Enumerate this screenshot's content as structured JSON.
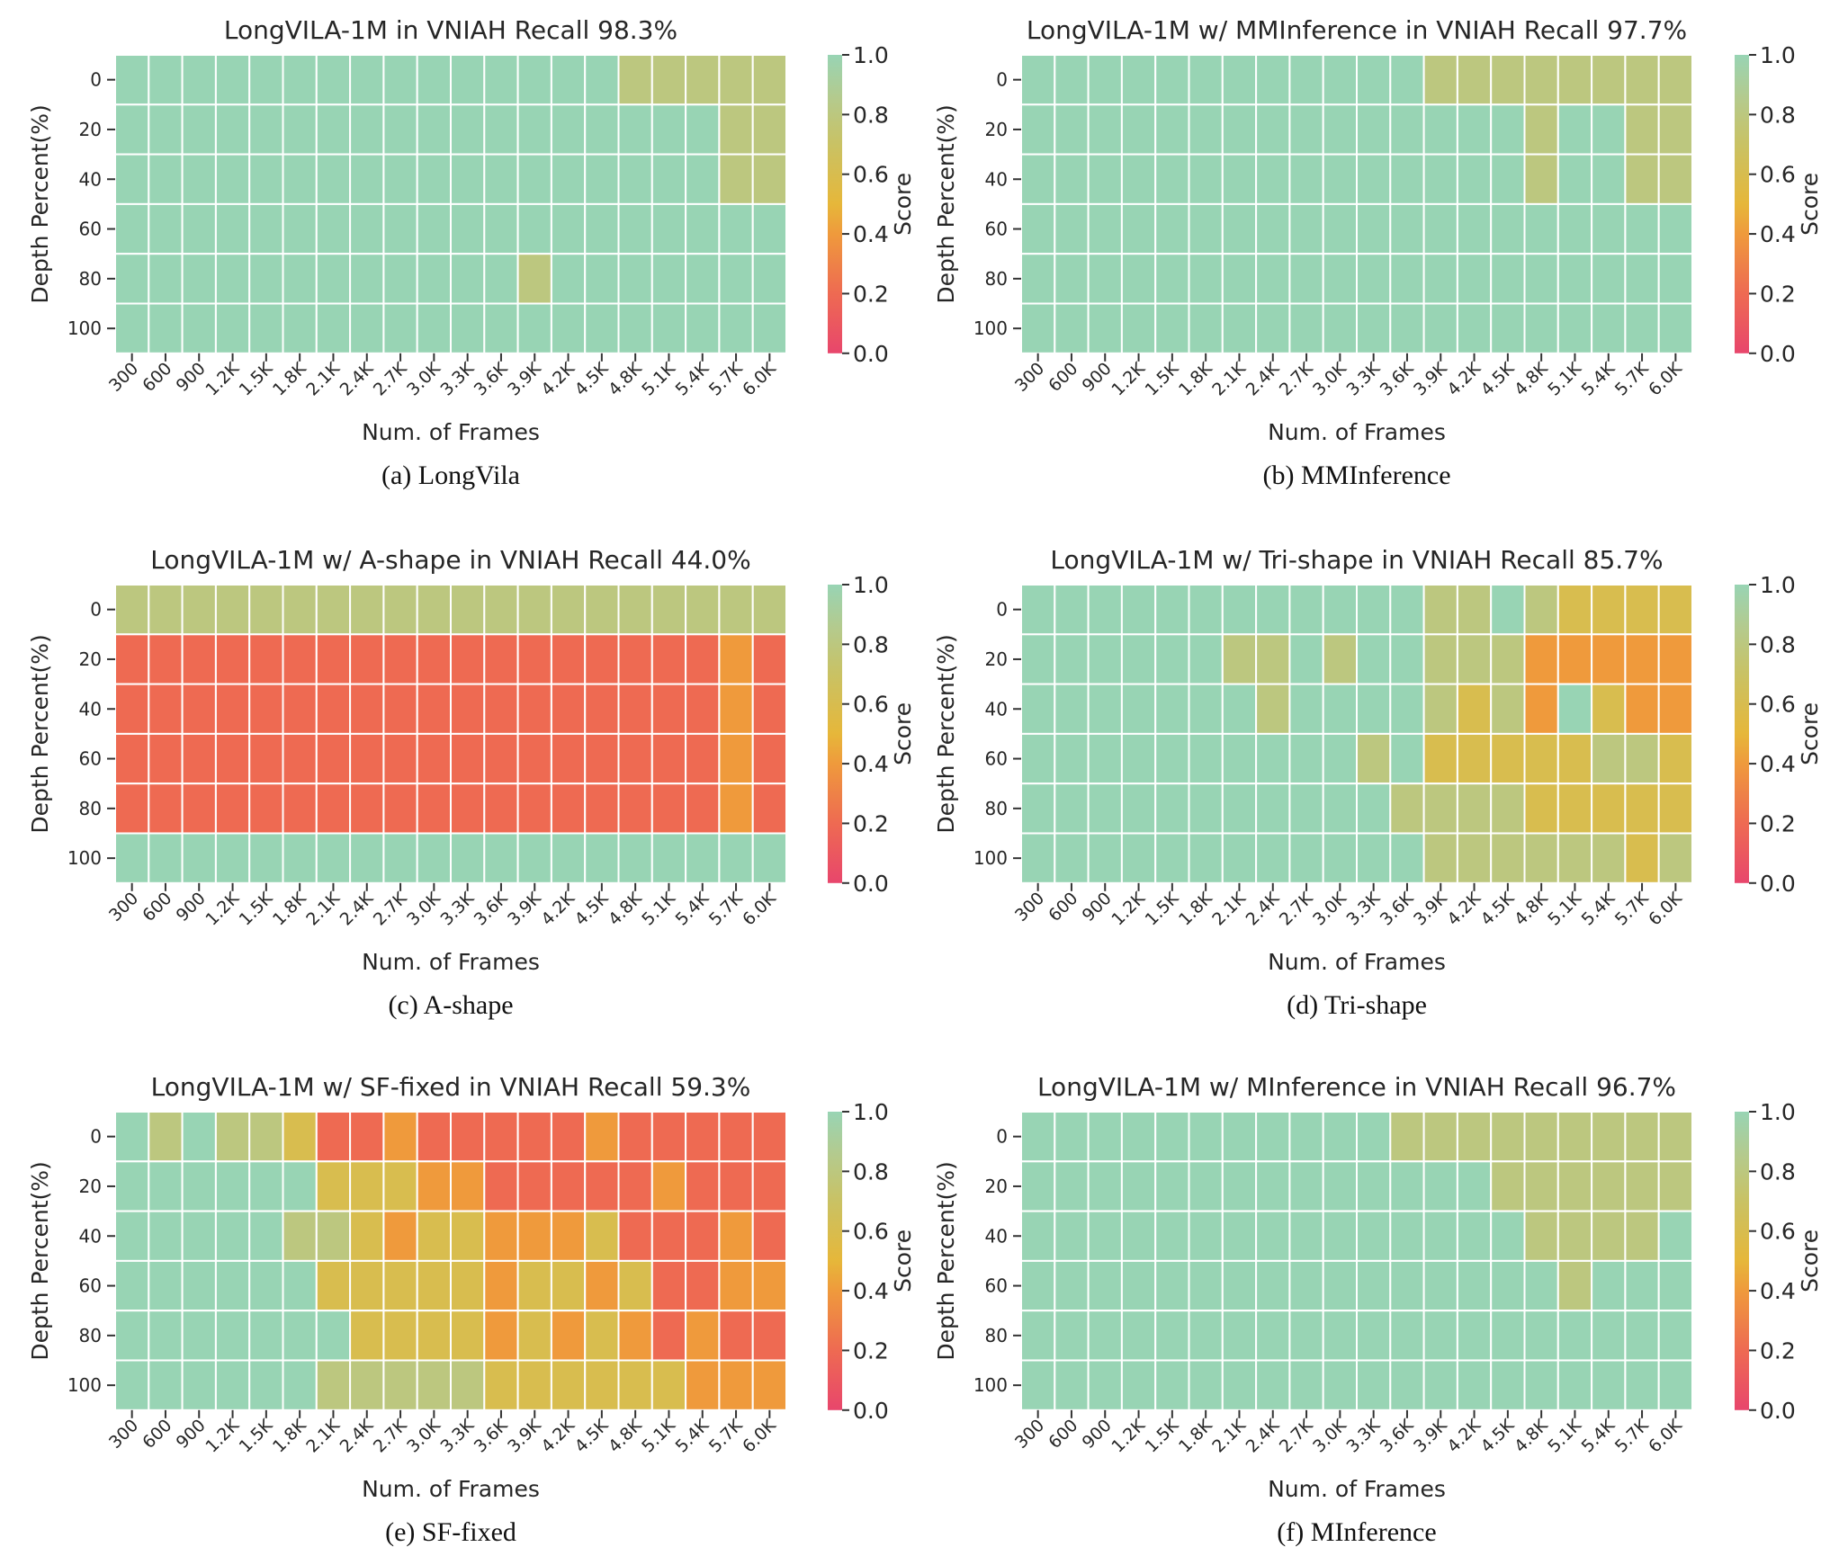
{
  "figure": {
    "colorbar": {
      "label": "Score",
      "min": 0.0,
      "max": 1.0,
      "ticks": [
        "0.0",
        "0.2",
        "0.4",
        "0.6",
        "0.8",
        "1.0"
      ],
      "stops": [
        {
          "v": 0.0,
          "color": "#e8466c"
        },
        {
          "v": 0.2,
          "color": "#ee6a52"
        },
        {
          "v": 0.4,
          "color": "#ef9a3c"
        },
        {
          "v": 0.5,
          "color": "#e6b73a"
        },
        {
          "v": 0.7,
          "color": "#c9c264"
        },
        {
          "v": 0.85,
          "color": "#b5ca8c"
        },
        {
          "v": 1.0,
          "color": "#98d4b4"
        }
      ]
    }
  },
  "chart_data": [
    {
      "type": "heatmap",
      "title": "LongVILA-1M in VNIAH Recall 98.3%",
      "caption": "(a) LongVila",
      "xlabel": "Num. of Frames",
      "ylabel": "Depth Percent(%)",
      "x": [
        "300",
        "600",
        "900",
        "1.2K",
        "1.5K",
        "1.8K",
        "2.1K",
        "2.4K",
        "2.7K",
        "3.0K",
        "3.3K",
        "3.6K",
        "3.9K",
        "4.2K",
        "4.5K",
        "4.8K",
        "5.1K",
        "5.4K",
        "5.7K",
        "6.0K"
      ],
      "y": [
        "0",
        "20",
        "40",
        "60",
        "80",
        "100"
      ],
      "values": [
        [
          1,
          1,
          1,
          1,
          1,
          1,
          1,
          1,
          1,
          1,
          1,
          1,
          1,
          1,
          1,
          0.8,
          0.8,
          0.8,
          0.8,
          0.8
        ],
        [
          1,
          1,
          1,
          1,
          1,
          1,
          1,
          1,
          1,
          1,
          1,
          1,
          1,
          1,
          1,
          1,
          1,
          1,
          0.8,
          0.8
        ],
        [
          1,
          1,
          1,
          1,
          1,
          1,
          1,
          1,
          1,
          1,
          1,
          1,
          1,
          1,
          1,
          1,
          1,
          1,
          0.8,
          0.8
        ],
        [
          1,
          1,
          1,
          1,
          1,
          1,
          1,
          1,
          1,
          1,
          1,
          1,
          1,
          1,
          1,
          1,
          1,
          1,
          1,
          1
        ],
        [
          1,
          1,
          1,
          1,
          1,
          1,
          1,
          1,
          1,
          1,
          1,
          1,
          0.8,
          1,
          1,
          1,
          1,
          1,
          1,
          1
        ],
        [
          1,
          1,
          1,
          1,
          1,
          1,
          1,
          1,
          1,
          1,
          1,
          1,
          1,
          1,
          1,
          1,
          1,
          1,
          1,
          1
        ]
      ]
    },
    {
      "type": "heatmap",
      "title": "LongVILA-1M w/ MMInference in VNIAH Recall 97.7%",
      "caption": "(b) MMInference",
      "xlabel": "Num. of Frames",
      "ylabel": "Depth Percent(%)",
      "x": [
        "300",
        "600",
        "900",
        "1.2K",
        "1.5K",
        "1.8K",
        "2.1K",
        "2.4K",
        "2.7K",
        "3.0K",
        "3.3K",
        "3.6K",
        "3.9K",
        "4.2K",
        "4.5K",
        "4.8K",
        "5.1K",
        "5.4K",
        "5.7K",
        "6.0K"
      ],
      "y": [
        "0",
        "20",
        "40",
        "60",
        "80",
        "100"
      ],
      "values": [
        [
          1,
          1,
          1,
          1,
          1,
          1,
          1,
          1,
          1,
          1,
          1,
          1,
          0.8,
          0.8,
          0.8,
          0.8,
          0.8,
          0.8,
          0.8,
          0.8
        ],
        [
          1,
          1,
          1,
          1,
          1,
          1,
          1,
          1,
          1,
          1,
          1,
          1,
          1,
          1,
          1,
          0.8,
          1,
          1,
          0.8,
          0.8
        ],
        [
          1,
          1,
          1,
          1,
          1,
          1,
          1,
          1,
          1,
          1,
          1,
          1,
          1,
          1,
          1,
          0.8,
          1,
          1,
          0.8,
          0.8
        ],
        [
          1,
          1,
          1,
          1,
          1,
          1,
          1,
          1,
          1,
          1,
          1,
          1,
          1,
          1,
          1,
          1,
          1,
          1,
          1,
          1
        ],
        [
          1,
          1,
          1,
          1,
          1,
          1,
          1,
          1,
          1,
          1,
          1,
          1,
          1,
          1,
          1,
          1,
          1,
          1,
          1,
          1
        ],
        [
          1,
          1,
          1,
          1,
          1,
          1,
          1,
          1,
          1,
          1,
          1,
          1,
          1,
          1,
          1,
          1,
          1,
          1,
          1,
          1
        ]
      ]
    },
    {
      "type": "heatmap",
      "title": "LongVILA-1M w/ A-shape in VNIAH Recall 44.0%",
      "caption": "(c) A-shape",
      "xlabel": "Num. of Frames",
      "ylabel": "Depth Percent(%)",
      "x": [
        "300",
        "600",
        "900",
        "1.2K",
        "1.5K",
        "1.8K",
        "2.1K",
        "2.4K",
        "2.7K",
        "3.0K",
        "3.3K",
        "3.6K",
        "3.9K",
        "4.2K",
        "4.5K",
        "4.8K",
        "5.1K",
        "5.4K",
        "5.7K",
        "6.0K"
      ],
      "y": [
        "0",
        "20",
        "40",
        "60",
        "80",
        "100"
      ],
      "values": [
        [
          0.8,
          0.8,
          0.8,
          0.8,
          0.8,
          0.8,
          0.8,
          0.8,
          0.8,
          0.8,
          0.8,
          0.8,
          0.8,
          0.8,
          0.8,
          0.8,
          0.8,
          0.8,
          0.8,
          0.8
        ],
        [
          0.2,
          0.2,
          0.2,
          0.2,
          0.2,
          0.2,
          0.2,
          0.2,
          0.2,
          0.2,
          0.2,
          0.2,
          0.2,
          0.2,
          0.2,
          0.2,
          0.2,
          0.2,
          0.4,
          0.2
        ],
        [
          0.2,
          0.2,
          0.2,
          0.2,
          0.2,
          0.2,
          0.2,
          0.2,
          0.2,
          0.2,
          0.2,
          0.2,
          0.2,
          0.2,
          0.2,
          0.2,
          0.2,
          0.2,
          0.4,
          0.2
        ],
        [
          0.2,
          0.2,
          0.2,
          0.2,
          0.2,
          0.2,
          0.2,
          0.2,
          0.2,
          0.2,
          0.2,
          0.2,
          0.2,
          0.2,
          0.2,
          0.2,
          0.2,
          0.2,
          0.4,
          0.2
        ],
        [
          0.2,
          0.2,
          0.2,
          0.2,
          0.2,
          0.2,
          0.2,
          0.2,
          0.2,
          0.2,
          0.2,
          0.2,
          0.2,
          0.2,
          0.2,
          0.2,
          0.2,
          0.2,
          0.4,
          0.2
        ],
        [
          1,
          1,
          1,
          1,
          1,
          1,
          1,
          1,
          1,
          1,
          1,
          1,
          1,
          1,
          1,
          1,
          1,
          1,
          1,
          1
        ]
      ]
    },
    {
      "type": "heatmap",
      "title": "LongVILA-1M w/ Tri-shape in VNIAH Recall 85.7%",
      "caption": "(d) Tri-shape",
      "xlabel": "Num. of Frames",
      "ylabel": "Depth Percent(%)",
      "x": [
        "300",
        "600",
        "900",
        "1.2K",
        "1.5K",
        "1.8K",
        "2.1K",
        "2.4K",
        "2.7K",
        "3.0K",
        "3.3K",
        "3.6K",
        "3.9K",
        "4.2K",
        "4.5K",
        "4.8K",
        "5.1K",
        "5.4K",
        "5.7K",
        "6.0K"
      ],
      "y": [
        "0",
        "20",
        "40",
        "60",
        "80",
        "100"
      ],
      "values": [
        [
          1,
          1,
          1,
          1,
          1,
          1,
          1,
          1,
          1,
          1,
          1,
          1,
          0.8,
          0.8,
          1,
          0.8,
          0.6,
          0.6,
          0.6,
          0.6
        ],
        [
          1,
          1,
          1,
          1,
          1,
          1,
          0.8,
          0.8,
          1,
          0.8,
          1,
          1,
          0.8,
          0.8,
          0.8,
          0.4,
          0.4,
          0.4,
          0.4,
          0.4
        ],
        [
          1,
          1,
          1,
          1,
          1,
          1,
          1,
          0.8,
          1,
          1,
          1,
          1,
          0.8,
          0.6,
          0.8,
          0.4,
          1,
          0.6,
          0.4,
          0.4
        ],
        [
          1,
          1,
          1,
          1,
          1,
          1,
          1,
          1,
          1,
          1,
          0.8,
          1,
          0.6,
          0.6,
          0.6,
          0.6,
          0.6,
          0.8,
          0.8,
          0.6
        ],
        [
          1,
          1,
          1,
          1,
          1,
          1,
          1,
          1,
          1,
          1,
          1,
          0.8,
          0.8,
          0.8,
          0.8,
          0.6,
          0.6,
          0.6,
          0.6,
          0.6
        ],
        [
          1,
          1,
          1,
          1,
          1,
          1,
          1,
          1,
          1,
          1,
          1,
          1,
          0.8,
          0.8,
          0.8,
          0.8,
          0.8,
          0.8,
          0.6,
          0.8
        ]
      ]
    },
    {
      "type": "heatmap",
      "title": "LongVILA-1M w/ SF-fixed in VNIAH Recall 59.3%",
      "caption": "(e) SF-fixed",
      "xlabel": "Num. of Frames",
      "ylabel": "Depth Percent(%)",
      "x": [
        "300",
        "600",
        "900",
        "1.2K",
        "1.5K",
        "1.8K",
        "2.1K",
        "2.4K",
        "2.7K",
        "3.0K",
        "3.3K",
        "3.6K",
        "3.9K",
        "4.2K",
        "4.5K",
        "4.8K",
        "5.1K",
        "5.4K",
        "5.7K",
        "6.0K"
      ],
      "y": [
        "0",
        "20",
        "40",
        "60",
        "80",
        "100"
      ],
      "values": [
        [
          1,
          0.8,
          1,
          0.8,
          0.8,
          0.6,
          0.2,
          0.2,
          0.4,
          0.2,
          0.2,
          0.2,
          0.2,
          0.2,
          0.4,
          0.2,
          0.2,
          0.2,
          0.2,
          0.2
        ],
        [
          1,
          1,
          1,
          1,
          1,
          1,
          0.6,
          0.6,
          0.6,
          0.4,
          0.4,
          0.2,
          0.2,
          0.2,
          0.2,
          0.2,
          0.4,
          0.2,
          0.2,
          0.2
        ],
        [
          1,
          1,
          1,
          1,
          1,
          0.8,
          0.8,
          0.6,
          0.4,
          0.6,
          0.6,
          0.4,
          0.4,
          0.4,
          0.6,
          0.2,
          0.2,
          0.2,
          0.4,
          0.2
        ],
        [
          1,
          1,
          1,
          1,
          1,
          1,
          0.6,
          0.6,
          0.6,
          0.6,
          0.6,
          0.4,
          0.6,
          0.6,
          0.4,
          0.6,
          0.2,
          0.2,
          0.4,
          0.4
        ],
        [
          1,
          1,
          1,
          1,
          1,
          1,
          1,
          0.6,
          0.6,
          0.6,
          0.6,
          0.4,
          0.6,
          0.4,
          0.6,
          0.4,
          0.2,
          0.4,
          0.2,
          0.2
        ],
        [
          1,
          1,
          1,
          1,
          1,
          1,
          0.8,
          0.8,
          0.8,
          0.8,
          0.8,
          0.6,
          0.6,
          0.6,
          0.6,
          0.6,
          0.6,
          0.4,
          0.4,
          0.4
        ]
      ]
    },
    {
      "type": "heatmap",
      "title": "LongVILA-1M w/ MInference in VNIAH Recall 96.7%",
      "caption": "(f) MInference",
      "xlabel": "Num. of Frames",
      "ylabel": "Depth Percent(%)",
      "x": [
        "300",
        "600",
        "900",
        "1.2K",
        "1.5K",
        "1.8K",
        "2.1K",
        "2.4K",
        "2.7K",
        "3.0K",
        "3.3K",
        "3.6K",
        "3.9K",
        "4.2K",
        "4.5K",
        "4.8K",
        "5.1K",
        "5.4K",
        "5.7K",
        "6.0K"
      ],
      "y": [
        "0",
        "20",
        "40",
        "60",
        "80",
        "100"
      ],
      "values": [
        [
          1,
          1,
          1,
          1,
          1,
          1,
          1,
          1,
          1,
          1,
          1,
          0.8,
          0.8,
          0.8,
          0.8,
          0.8,
          0.8,
          0.8,
          0.8,
          0.8
        ],
        [
          1,
          1,
          1,
          1,
          1,
          1,
          1,
          1,
          1,
          1,
          1,
          1,
          1,
          1,
          0.8,
          0.8,
          0.8,
          0.8,
          0.8,
          0.8
        ],
        [
          1,
          1,
          1,
          1,
          1,
          1,
          1,
          1,
          1,
          1,
          1,
          1,
          1,
          1,
          1,
          0.8,
          0.8,
          0.8,
          0.8,
          1
        ],
        [
          1,
          1,
          1,
          1,
          1,
          1,
          1,
          1,
          1,
          1,
          1,
          1,
          1,
          1,
          1,
          1,
          0.8,
          1,
          1,
          1
        ],
        [
          1,
          1,
          1,
          1,
          1,
          1,
          1,
          1,
          1,
          1,
          1,
          1,
          1,
          1,
          1,
          1,
          1,
          1,
          1,
          1
        ],
        [
          1,
          1,
          1,
          1,
          1,
          1,
          1,
          1,
          1,
          1,
          1,
          1,
          1,
          1,
          1,
          1,
          1,
          1,
          1,
          1
        ]
      ]
    }
  ]
}
